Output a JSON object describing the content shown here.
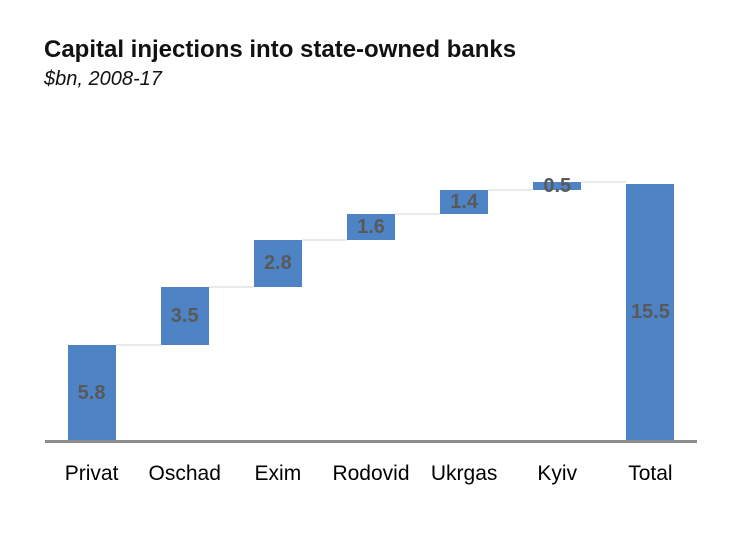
{
  "header": {
    "title": "Capital injections into state-owned banks",
    "subtitle": "$bn, 2008-17"
  },
  "chart_data": {
    "type": "bar",
    "subtype": "waterfall",
    "title": "Capital injections into state-owned banks",
    "subtitle": "$bn, 2008-17",
    "categories": [
      "Privat",
      "Oschad",
      "Exim",
      "Rodovid",
      "Ukrgas",
      "Kyiv",
      "Total"
    ],
    "values": [
      5.8,
      3.5,
      2.8,
      1.6,
      1.4,
      0.5,
      15.5
    ],
    "value_labels": [
      "5.8",
      "3.5",
      "2.8",
      "1.6",
      "1.4",
      "0.5",
      "15.5"
    ],
    "is_total": [
      false,
      false,
      false,
      false,
      false,
      false,
      true
    ],
    "xlabel": "",
    "ylabel": "",
    "ylim": [
      0,
      15.6
    ],
    "grid": false,
    "legend": "none",
    "y_axis_visible": false,
    "colors": {
      "bar": "#4e84c5",
      "value_label": "#595959",
      "axis_line": "#8c8c8c",
      "connector": "#eaeaea",
      "category_label": "#000000",
      "title": "#111111",
      "background": "#ffffff"
    }
  }
}
